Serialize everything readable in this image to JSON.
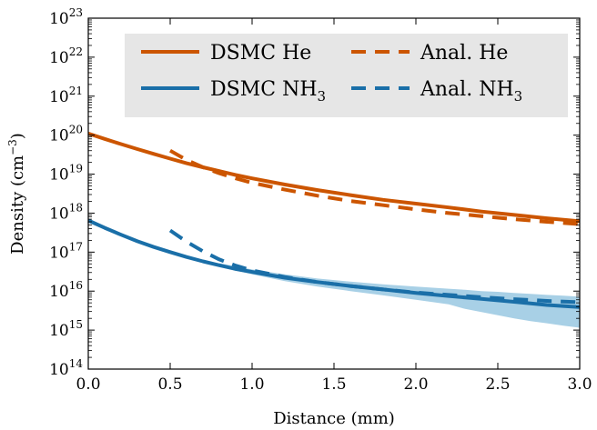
{
  "chart_data": {
    "type": "line",
    "xlabel": "Distance (mm)",
    "ylabel": "Density (cm",
    "ylabel_unit_exponent": "−3",
    "ylabel_close": ")",
    "xlim": [
      0,
      3
    ],
    "ylim_exponent": [
      14,
      23
    ],
    "log_y": true,
    "grid": false,
    "legend_placement": "top",
    "x_ticks": [
      "0.0",
      "0.5",
      "1.0",
      "1.5",
      "2.0",
      "2.5",
      "3.0"
    ],
    "y_ticks": [
      {
        "base": "10",
        "exp": "14"
      },
      {
        "base": "10",
        "exp": "15"
      },
      {
        "base": "10",
        "exp": "16"
      },
      {
        "base": "10",
        "exp": "17"
      },
      {
        "base": "10",
        "exp": "18"
      },
      {
        "base": "10",
        "exp": "19"
      },
      {
        "base": "10",
        "exp": "20"
      },
      {
        "base": "10",
        "exp": "21"
      },
      {
        "base": "10",
        "exp": "22"
      },
      {
        "base": "10",
        "exp": "23"
      }
    ],
    "legend": [
      {
        "text": "DSMC He",
        "sub": "",
        "style": "solid",
        "color": "#cc5500"
      },
      {
        "text": "Anal. He",
        "sub": "",
        "style": "dashed",
        "color": "#cc5500"
      },
      {
        "text": "DSMC NH",
        "sub": "3",
        "style": "solid",
        "color": "#1a6fa8"
      },
      {
        "text": "Anal. NH",
        "sub": "3",
        "style": "dashed",
        "color": "#1a6fa8"
      }
    ],
    "series": [
      {
        "key": "dsmc_he",
        "style": "solid",
        "color": "#cc5500",
        "x": [
          0.0,
          0.1,
          0.2,
          0.3,
          0.4,
          0.5,
          0.6,
          0.7,
          0.8,
          0.9,
          1.0,
          1.2,
          1.4,
          1.6,
          1.8,
          2.0,
          2.2,
          2.4,
          2.6,
          2.8,
          3.0
        ],
        "y": [
          1.1e+20,
          8e+19,
          5.9e+19,
          4.4e+19,
          3.3e+19,
          2.5e+19,
          1.9e+19,
          1.5e+19,
          1.2e+19,
          9.5e+18,
          7.8e+18,
          5.4e+18,
          3.9e+18,
          2.9e+18,
          2.2e+18,
          1.75e+18,
          1.4e+18,
          1.1e+18,
          9e+17,
          7.4e+17,
          6.2e+17
        ]
      },
      {
        "key": "anal_he",
        "style": "dashed",
        "color": "#cc5500",
        "x": [
          0.5,
          0.6,
          0.7,
          0.8,
          0.9,
          1.0,
          1.2,
          1.4,
          1.6,
          1.8,
          2.0,
          2.2,
          2.4,
          2.6,
          2.8,
          3.0
        ],
        "y": [
          4e+19,
          2.3e+19,
          1.5e+19,
          1.05e+19,
          7.8e+18,
          6e+18,
          4e+18,
          2.8e+18,
          2.05e+18,
          1.6e+18,
          1.25e+18,
          1e+18,
          8.4e+17,
          7e+17,
          6e+17,
          5.2e+17
        ]
      },
      {
        "key": "dsmc_nh3",
        "style": "solid",
        "color": "#1a6fa8",
        "x": [
          0.0,
          0.1,
          0.2,
          0.3,
          0.4,
          0.5,
          0.6,
          0.7,
          0.8,
          0.9,
          1.0,
          1.2,
          1.4,
          1.6,
          1.8,
          2.0,
          2.2,
          2.4,
          2.6,
          2.8,
          3.0
        ],
        "y": [
          6.5e+17,
          4.2e+17,
          2.8e+17,
          1.9e+17,
          1.35e+17,
          1e+17,
          7.5e+16,
          5.8e+16,
          4.6e+16,
          3.7e+16,
          3.1e+16,
          2.2e+16,
          1.7e+16,
          1.35e+16,
          1.1e+16,
          9000000000000000.0,
          7500000000000000.0,
          6300000000000000.0,
          5300000000000000.0,
          4400000000000000.0,
          3900000000000000.0
        ]
      },
      {
        "key": "anal_nh3",
        "style": "dashed",
        "color": "#1a6fa8",
        "x": [
          0.5,
          0.6,
          0.7,
          0.8,
          0.9,
          1.0,
          1.2,
          1.4,
          1.6,
          1.8,
          2.0,
          2.2,
          2.4,
          2.6,
          2.8,
          3.0
        ],
        "y": [
          3.6e+17,
          1.85e+17,
          1.05e+17,
          6.5e+16,
          4.5e+16,
          3.4e+16,
          2.3e+16,
          1.7e+16,
          1.35e+16,
          1.1e+16,
          9200000000000000.0,
          8000000000000000.0,
          7000000000000000.0,
          6200000000000000.0,
          5600000000000000.0,
          5200000000000000.0
        ]
      }
    ],
    "band": {
      "key": "nh3_uncertainty",
      "color": "#a8d0e6",
      "x": [
        0.8,
        1.0,
        1.2,
        1.4,
        1.6,
        1.8,
        2.0,
        2.2,
        2.3,
        2.4,
        2.5,
        2.6,
        2.7,
        2.8,
        2.9,
        3.0
      ],
      "upper": [
        5.2e+16,
        3.6e+16,
        2.7e+16,
        2.1e+16,
        1.75e+16,
        1.5e+16,
        1.3e+16,
        1.15e+16,
        1.08e+16,
        1e+16,
        9600000000000000.0,
        9000000000000000.0,
        8500000000000000.0,
        8000000000000000.0,
        7600000000000000.0,
        7200000000000000.0
      ],
      "lower": [
        4.2e+16,
        2.7e+16,
        1.8e+16,
        1.3e+16,
        1e+16,
        7800000000000000.0,
        6000000000000000.0,
        4600000000000000.0,
        3500000000000000.0,
        2900000000000000.0,
        2400000000000000.0,
        2000000000000000.0,
        1700000000000000.0,
        1500000000000000.0,
        1300000000000000.0,
        1150000000000000.0
      ]
    }
  }
}
